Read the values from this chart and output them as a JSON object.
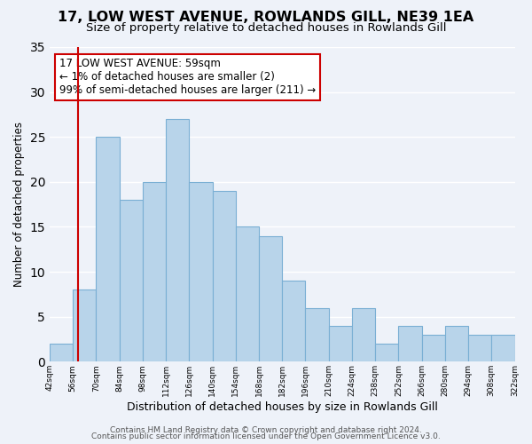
{
  "title": "17, LOW WEST AVENUE, ROWLANDS GILL, NE39 1EA",
  "subtitle": "Size of property relative to detached houses in Rowlands Gill",
  "xlabel": "Distribution of detached houses by size in Rowlands Gill",
  "ylabel": "Number of detached properties",
  "bar_left_edges": [
    42,
    56,
    70,
    84,
    98,
    112,
    126,
    140,
    154,
    168,
    182,
    196,
    210,
    224,
    238,
    252,
    266,
    280,
    294,
    308
  ],
  "bar_right_edges": [
    56,
    70,
    84,
    98,
    112,
    126,
    140,
    154,
    168,
    182,
    196,
    210,
    224,
    238,
    252,
    266,
    280,
    294,
    308,
    322
  ],
  "bar_heights": [
    2,
    8,
    25,
    18,
    20,
    27,
    20,
    19,
    15,
    14,
    9,
    6,
    4,
    6,
    2,
    4,
    3,
    4,
    3,
    3
  ],
  "bar_color": "#b8d4ea",
  "bar_edge_color": "#7aafd4",
  "vline_x": 59,
  "vline_color": "#cc0000",
  "annotation_text": "17 LOW WEST AVENUE: 59sqm\n← 1% of detached houses are smaller (2)\n99% of semi-detached houses are larger (211) →",
  "annotation_box_color": "#ffffff",
  "annotation_box_edge_color": "#cc0000",
  "ylim": [
    0,
    35
  ],
  "yticks": [
    0,
    5,
    10,
    15,
    20,
    25,
    30,
    35
  ],
  "xtick_positions": [
    42,
    56,
    70,
    84,
    98,
    112,
    126,
    140,
    154,
    168,
    182,
    196,
    210,
    224,
    238,
    252,
    266,
    280,
    294,
    308,
    322
  ],
  "xtick_labels": [
    "42sqm",
    "56sqm",
    "70sqm",
    "84sqm",
    "98sqm",
    "112sqm",
    "126sqm",
    "140sqm",
    "154sqm",
    "168sqm",
    "182sqm",
    "196sqm",
    "210sqm",
    "224sqm",
    "238sqm",
    "252sqm",
    "266sqm",
    "280sqm",
    "294sqm",
    "308sqm",
    "322sqm"
  ],
  "footer_line1": "Contains HM Land Registry data © Crown copyright and database right 2024.",
  "footer_line2": "Contains public sector information licensed under the Open Government Licence v3.0.",
  "background_color": "#eef2f9",
  "plot_background_color": "#eef2f9",
  "title_fontsize": 11.5,
  "subtitle_fontsize": 9.5,
  "xlabel_fontsize": 9,
  "ylabel_fontsize": 8.5,
  "footer_fontsize": 6.5,
  "annotation_fontsize": 8.5,
  "xlim": [
    42,
    322
  ]
}
